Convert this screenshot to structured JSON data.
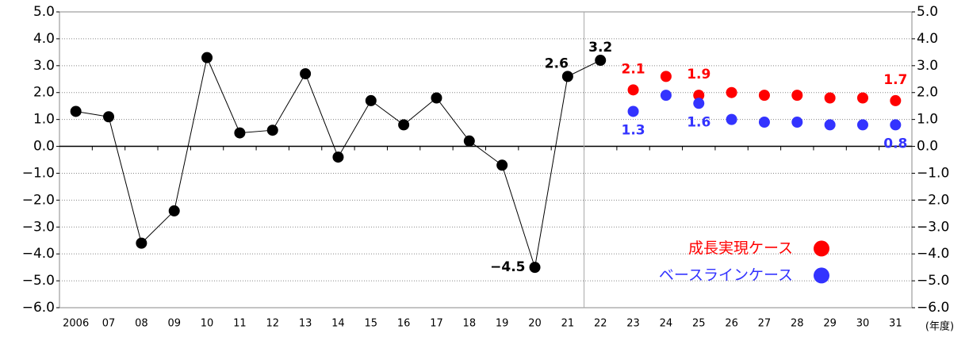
{
  "chart_data": {
    "type": "line",
    "categories": [
      "2006",
      "07",
      "08",
      "09",
      "10",
      "11",
      "12",
      "13",
      "14",
      "15",
      "16",
      "17",
      "18",
      "19",
      "20",
      "21",
      "22",
      "23",
      "24",
      "25",
      "26",
      "27",
      "28",
      "29",
      "30",
      "31"
    ],
    "x_label": "(年度)",
    "series": [
      {
        "name": null,
        "color": "#000000",
        "style": "line-markers",
        "values": [
          1.3,
          1.1,
          -3.6,
          -2.4,
          3.3,
          0.5,
          0.6,
          2.7,
          -0.4,
          1.7,
          0.8,
          1.8,
          0.2,
          -0.7,
          -4.5,
          2.6,
          3.2,
          null,
          null,
          null,
          null,
          null,
          null,
          null,
          null,
          null
        ],
        "value_labels": [
          null,
          null,
          null,
          null,
          null,
          null,
          null,
          null,
          null,
          null,
          null,
          null,
          null,
          null,
          "−4.5",
          "2.6",
          "3.2",
          null,
          null,
          null,
          null,
          null,
          null,
          null,
          null,
          null
        ]
      },
      {
        "name": "成長実現ケース",
        "color": "#ff0000",
        "style": "markers",
        "values": [
          null,
          null,
          null,
          null,
          null,
          null,
          null,
          null,
          null,
          null,
          null,
          null,
          null,
          null,
          null,
          null,
          null,
          2.1,
          2.6,
          1.9,
          2.0,
          1.9,
          1.9,
          1.8,
          1.8,
          1.7
        ],
        "value_labels": [
          null,
          null,
          null,
          null,
          null,
          null,
          null,
          null,
          null,
          null,
          null,
          null,
          null,
          null,
          null,
          null,
          null,
          "2.1",
          null,
          "1.9",
          null,
          null,
          null,
          null,
          null,
          "1.7"
        ]
      },
      {
        "name": "ベースラインケース",
        "color": "#3333ff",
        "style": "markers",
        "values": [
          null,
          null,
          null,
          null,
          null,
          null,
          null,
          null,
          null,
          null,
          null,
          null,
          null,
          null,
          null,
          null,
          null,
          1.3,
          1.9,
          1.6,
          1.0,
          0.9,
          0.9,
          0.8,
          0.8,
          0.8
        ],
        "value_labels": [
          null,
          null,
          null,
          null,
          null,
          null,
          null,
          null,
          null,
          null,
          null,
          null,
          null,
          null,
          null,
          null,
          null,
          "1.3",
          null,
          "1.6",
          null,
          null,
          null,
          null,
          null,
          "0.8"
        ]
      }
    ],
    "ylim": [
      -6,
      5
    ],
    "yticks": [
      {
        "value": 5,
        "label": "5.0"
      },
      {
        "value": 4,
        "label": "4.0"
      },
      {
        "value": 3,
        "label": "3.0"
      },
      {
        "value": 2,
        "label": "2.0"
      },
      {
        "value": 1,
        "label": "1.0"
      },
      {
        "value": 0,
        "label": "0.0"
      },
      {
        "value": -1,
        "label": "−1.0"
      },
      {
        "value": -2,
        "label": "−2.0"
      },
      {
        "value": -3,
        "label": "−3.0"
      },
      {
        "value": -4,
        "label": "−4.0"
      },
      {
        "value": -5,
        "label": "−5.0"
      },
      {
        "value": -6,
        "label": "−6.0"
      }
    ],
    "grid": true,
    "legend": "lower right"
  }
}
